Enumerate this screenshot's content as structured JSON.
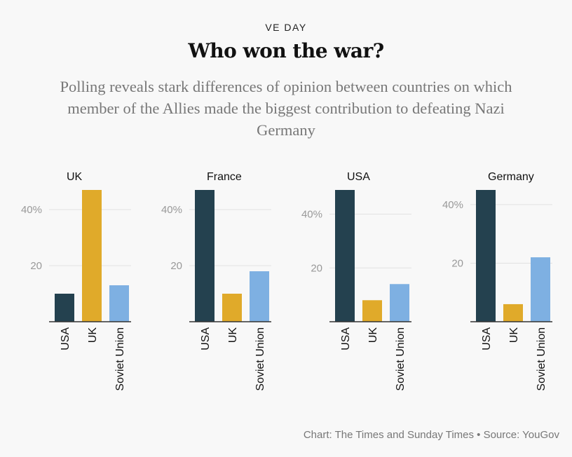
{
  "header": {
    "kicker": "VE DAY",
    "title": "Who won the war?",
    "subtitle": "Polling reveals stark differences of opinion between countries on which member of the Allies made the biggest contribution to defeating Nazi Germany"
  },
  "footer": {
    "credit": "Chart: The Times and Sunday Times • Source: YouGov"
  },
  "colors": {
    "USA": "#24414f",
    "UK": "#e0aa2a",
    "Soviet Union": "#7eb0e2"
  },
  "chart_data": [
    {
      "type": "bar",
      "title": "UK",
      "categories": [
        "USA",
        "UK",
        "Soviet Union"
      ],
      "values": [
        10,
        47,
        13
      ],
      "yticks": [
        "20",
        "40%"
      ],
      "ytick_values": [
        20,
        40
      ],
      "ylim": [
        0,
        47
      ]
    },
    {
      "type": "bar",
      "title": "France",
      "categories": [
        "USA",
        "UK",
        "Soviet Union"
      ],
      "values": [
        47,
        10,
        18
      ],
      "yticks": [
        "20",
        "40%"
      ],
      "ytick_values": [
        20,
        40
      ],
      "ylim": [
        0,
        47
      ]
    },
    {
      "type": "bar",
      "title": "USA",
      "categories": [
        "USA",
        "UK",
        "Soviet Union"
      ],
      "values": [
        49,
        8,
        14
      ],
      "yticks": [
        "20",
        "40%"
      ],
      "ytick_values": [
        20,
        40
      ],
      "ylim": [
        0,
        49
      ]
    },
    {
      "type": "bar",
      "title": "Germany",
      "categories": [
        "USA",
        "UK",
        "Soviet Union"
      ],
      "values": [
        45,
        6,
        22
      ],
      "yticks": [
        "20",
        "40%"
      ],
      "ytick_values": [
        20,
        40
      ],
      "ylim": [
        0,
        45
      ]
    }
  ]
}
